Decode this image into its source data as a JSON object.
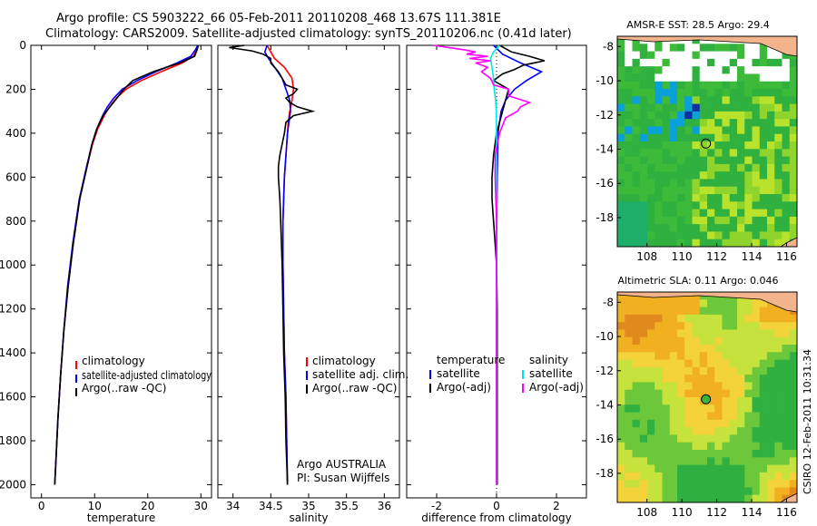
{
  "title_line1": "Argo profile: CS 5903222_66 05-Feb-2011 20110208_468 13.67S 111.381E",
  "title_line2": "Climatology: CARS2009. Satellite-adjusted climatology: synTS_20110206.nc (0.41d later)",
  "side_credit": "CSIRO 12-Feb-2011 10:31:34",
  "colors": {
    "climatology": "#ff0000",
    "satellite": "#0000ff",
    "argo": "#000000",
    "sat_salinity": "#00e5e5",
    "argo_salinity": "#ff00ff"
  },
  "chart_data": [
    {
      "id": "temperature",
      "type": "line",
      "xlabel": "temperature",
      "xlim": [
        -2,
        32
      ],
      "xticks": [
        0,
        10,
        20,
        30
      ],
      "xtick_labels": [
        "0",
        "10",
        "20",
        "30"
      ],
      "ylim": [
        0,
        2060
      ],
      "yticks": [
        0,
        200,
        400,
        600,
        800,
        1000,
        1200,
        1400,
        1600,
        1800,
        2000
      ],
      "ytick_labels": [
        "0",
        "200",
        "400",
        "600",
        "800",
        "1000",
        "1200",
        "1400",
        "1600",
        "1800",
        "2000"
      ],
      "legend": [
        "climatology",
        "satellite-adjusted climatology",
        "Argo(..raw -QC)"
      ],
      "series": [
        {
          "name": "climatology",
          "color": "#ff0000",
          "depth": [
            0,
            20,
            50,
            80,
            120,
            160,
            200,
            240,
            280,
            320,
            380,
            450,
            550,
            700,
            900,
            1100,
            1300,
            1500,
            1700,
            1900,
            2000
          ],
          "values": [
            29.4,
            29.2,
            28.6,
            26.5,
            22.5,
            18.8,
            15.9,
            14.1,
            12.8,
            11.8,
            10.6,
            9.6,
            8.6,
            7.2,
            6.0,
            5.0,
            4.2,
            3.6,
            3.1,
            2.7,
            2.5
          ]
        },
        {
          "name": "satellite-adjusted climatology",
          "color": "#0000ff",
          "depth": [
            0,
            20,
            50,
            80,
            120,
            160,
            200,
            240,
            280,
            320,
            380,
            450,
            550,
            700,
            900,
            1100,
            1300,
            1500,
            1700,
            1900,
            2000
          ],
          "values": [
            29.4,
            29.0,
            28.1,
            25.5,
            21.5,
            18.0,
            15.2,
            13.6,
            12.4,
            11.5,
            10.4,
            9.5,
            8.5,
            7.1,
            5.9,
            4.9,
            4.2,
            3.6,
            3.1,
            2.7,
            2.5
          ]
        },
        {
          "name": "Argo(..raw -QC)",
          "color": "#000000",
          "depth": [
            0,
            20,
            50,
            80,
            120,
            160,
            200,
            240,
            280,
            320,
            380,
            450,
            550,
            700,
            900,
            1100,
            1300,
            1500,
            1700,
            1900,
            2000
          ],
          "values": [
            29.5,
            29.3,
            28.8,
            26.0,
            21.0,
            17.2,
            15.5,
            14.2,
            12.9,
            11.6,
            10.4,
            9.5,
            8.6,
            7.2,
            6.0,
            5.0,
            4.2,
            3.6,
            3.1,
            2.7,
            2.5
          ]
        }
      ]
    },
    {
      "id": "salinity",
      "type": "line",
      "xlabel": "salinity",
      "xlim": [
        33.8,
        36.2
      ],
      "xticks": [
        34,
        34.5,
        35,
        35.5,
        36
      ],
      "xtick_labels": [
        "34",
        "34.5",
        "35",
        "35.5",
        "36"
      ],
      "ylim": [
        0,
        2060
      ],
      "legend": [
        "climatology",
        "satellite adj. clim.",
        "Argo(..raw -QC)"
      ],
      "annotation": [
        "Argo AUSTRALIA",
        "PI: Susan Wijffels"
      ],
      "series": [
        {
          "name": "climatology",
          "color": "#ff0000",
          "depth": [
            0,
            30,
            60,
            100,
            150,
            200,
            250,
            300,
            350,
            400,
            500,
            600,
            700,
            800,
            1000,
            1200,
            1400,
            1600,
            1800,
            2000
          ],
          "values": [
            34.45,
            34.5,
            34.55,
            34.68,
            34.78,
            34.8,
            34.78,
            34.75,
            34.73,
            34.72,
            34.7,
            34.68,
            34.67,
            34.66,
            34.66,
            34.67,
            34.68,
            34.7,
            34.71,
            34.72
          ]
        },
        {
          "name": "satellite adj. clim.",
          "color": "#0000ff",
          "depth": [
            0,
            30,
            60,
            100,
            150,
            200,
            250,
            300,
            350,
            400,
            500,
            600,
            700,
            800,
            1000,
            1200,
            1400,
            1600,
            1800,
            2000
          ],
          "values": [
            34.45,
            34.42,
            34.47,
            34.55,
            34.65,
            34.7,
            34.75,
            34.76,
            34.74,
            34.72,
            34.7,
            34.68,
            34.67,
            34.66,
            34.66,
            34.67,
            34.68,
            34.7,
            34.71,
            34.72
          ]
        },
        {
          "name": "Argo(..raw -QC)",
          "color": "#000000",
          "depth": [
            0,
            10,
            25,
            40,
            60,
            80,
            100,
            120,
            150,
            180,
            200,
            220,
            240,
            260,
            280,
            300,
            320,
            350,
            400,
            450,
            500,
            550,
            600,
            700,
            800,
            900,
            1000,
            1200,
            1400,
            1600,
            1800,
            2000
          ],
          "values": [
            34.15,
            33.95,
            34.25,
            34.4,
            34.5,
            34.5,
            34.55,
            34.6,
            34.65,
            34.7,
            34.85,
            34.8,
            34.7,
            34.75,
            34.85,
            35.05,
            34.8,
            34.7,
            34.68,
            34.65,
            34.62,
            34.6,
            34.6,
            34.62,
            34.63,
            34.64,
            34.65,
            34.66,
            34.67,
            34.69,
            34.7,
            34.72
          ]
        }
      ]
    },
    {
      "id": "difference",
      "type": "line",
      "xlabel": "difference from climatology",
      "xlim": [
        -3,
        3
      ],
      "xticks": [
        -2,
        0,
        2
      ],
      "xtick_labels": [
        "-2",
        "0",
        "2"
      ],
      "ylim": [
        0,
        2060
      ],
      "legend_titles": [
        "temperature",
        "salinity"
      ],
      "legend_left": [
        "satellite",
        "Argo(-adj)"
      ],
      "legend_right": [
        "satellite",
        "Argo(-adj)"
      ],
      "series": [
        {
          "name": "temperature satellite",
          "color": "#0000ff",
          "depth": [
            0,
            40,
            80,
            120,
            160,
            200,
            250,
            300,
            400,
            600,
            800,
            1000,
            1500,
            2000
          ],
          "values": [
            -0.1,
            0.2,
            0.8,
            1.5,
            1.0,
            0.6,
            0.3,
            0.15,
            0.05,
            0.02,
            0.01,
            0.0,
            0.0,
            0.0
          ]
        },
        {
          "name": "temperature Argo(-adj)",
          "color": "#000000",
          "depth": [
            0,
            30,
            50,
            70,
            90,
            110,
            130,
            160,
            200,
            250,
            300,
            400,
            500,
            600,
            700,
            800,
            900,
            1000,
            1200,
            1500,
            2000
          ],
          "values": [
            0.1,
            0.5,
            1.1,
            1.6,
            0.9,
            0.6,
            0.2,
            -0.1,
            0.4,
            0.3,
            0.2,
            0.0,
            -0.1,
            -0.15,
            -0.15,
            -0.1,
            -0.05,
            0.0,
            0.02,
            0.02,
            0.02
          ]
        },
        {
          "name": "salinity satellite",
          "color": "#00e5e5",
          "depth": [
            0,
            30,
            60,
            100,
            150,
            200,
            250,
            300,
            400,
            600,
            800,
            1000,
            1500,
            2000
          ],
          "values": [
            0.1,
            -0.1,
            -0.2,
            -0.15,
            -0.1,
            -0.08,
            -0.03,
            -0.01,
            0.0,
            0.0,
            0.0,
            0.0,
            0.0,
            0.0
          ]
        },
        {
          "name": "salinity Argo(-adj)",
          "color": "#ff00ff",
          "depth": [
            0,
            10,
            20,
            30,
            40,
            50,
            60,
            70,
            80,
            100,
            120,
            150,
            180,
            200,
            230,
            260,
            280,
            300,
            330,
            400,
            500,
            600,
            800,
            1000,
            1500,
            2000
          ],
          "values": [
            -2.1,
            -1.6,
            -1.1,
            -0.7,
            -1.0,
            -0.3,
            -0.9,
            -0.2,
            -0.7,
            -0.3,
            -0.5,
            -0.2,
            -0.1,
            0.4,
            0.4,
            1.1,
            0.8,
            0.7,
            0.3,
            0.1,
            -0.05,
            -0.05,
            0.0,
            0.0,
            0.0,
            0.0
          ]
        }
      ]
    }
  ],
  "maps": [
    {
      "id": "sst",
      "title": "AMSR-E SST: 28.5 Argo: 29.4",
      "xticks": [
        108,
        110,
        112,
        114,
        116
      ],
      "xtick_labels": [
        "108",
        "110",
        "112",
        "114",
        "116"
      ],
      "yticks": [
        -8,
        -10,
        -12,
        -14,
        -16,
        -18
      ],
      "ytick_labels": [
        "-8",
        "-10",
        "-12",
        "-14",
        "-16",
        "-18"
      ],
      "marker": {
        "lon": 111.381,
        "lat": -13.67
      }
    },
    {
      "id": "sla",
      "title": "Altimetric SLA: 0.11 Argo: 0.046",
      "xticks": [
        108,
        110,
        112,
        114,
        116
      ],
      "xtick_labels": [
        "108",
        "110",
        "112",
        "114",
        "116"
      ],
      "yticks": [
        -8,
        -10,
        -12,
        -14,
        -16,
        -18
      ],
      "ytick_labels": [
        "-8",
        "-10",
        "-12",
        "-14",
        "-16",
        "-18"
      ],
      "marker": {
        "lon": 111.381,
        "lat": -13.67
      }
    }
  ]
}
